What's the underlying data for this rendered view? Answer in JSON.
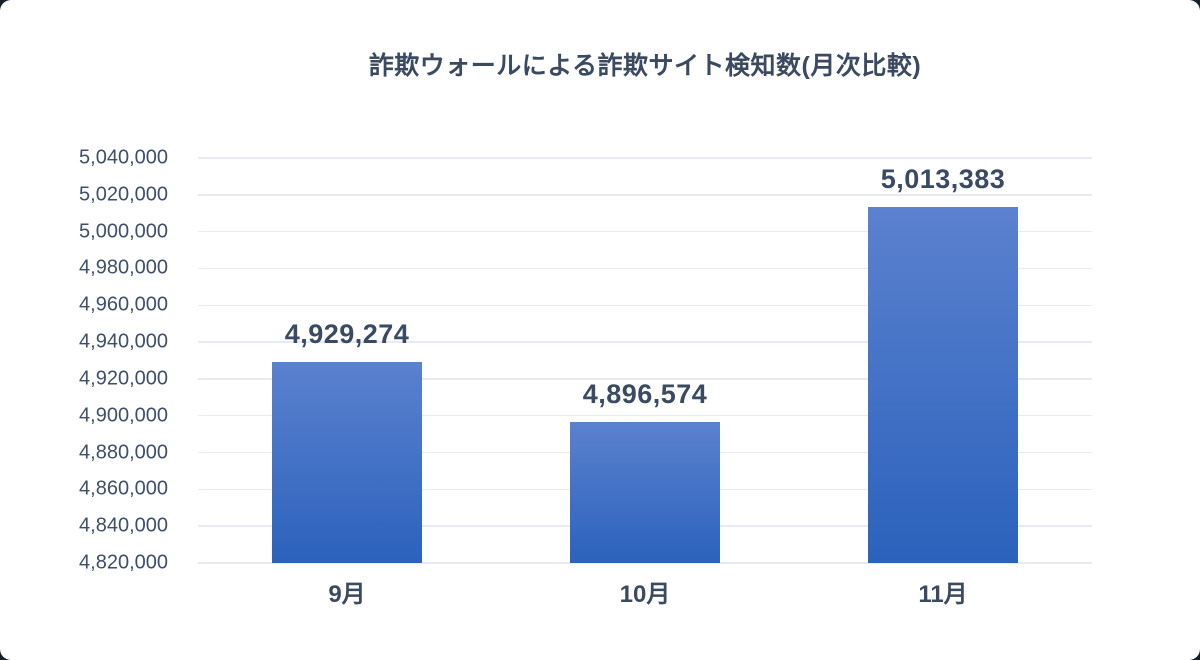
{
  "page": {
    "background": "#161f2b",
    "card_background": "#ffffff"
  },
  "chart_data": {
    "type": "bar",
    "title": "詐欺ウォールによる詐欺サイト検知数(月次比較)",
    "categories": [
      "9月",
      "10月",
      "11月"
    ],
    "values": [
      4929274,
      4896574,
      5013383
    ],
    "value_labels": [
      "4,929,274",
      "4,896,574",
      "5,013,383"
    ],
    "xlabel": "",
    "ylabel": "",
    "ylim": [
      4820000,
      5040000
    ],
    "ytick_interval": 20000,
    "ytick_labels_top_to_bottom": [
      "5,040,000",
      "5,020,000",
      "5,000,000",
      "4,980,000",
      "4,960,000",
      "4,940,000",
      "4,920,000",
      "4,900,000",
      "4,880,000",
      "4,860,000",
      "4,840,000",
      "4,820,000"
    ],
    "grid": true,
    "legend": false,
    "colors": {
      "bar_gradient_top": "#5b81cf",
      "bar_gradient_bottom": "#2b62bc",
      "gridline": "#e8ebf3",
      "title_text": "#3c4a61",
      "tick_text": "#3f4f6b",
      "value_text": "#3a4a63"
    }
  }
}
